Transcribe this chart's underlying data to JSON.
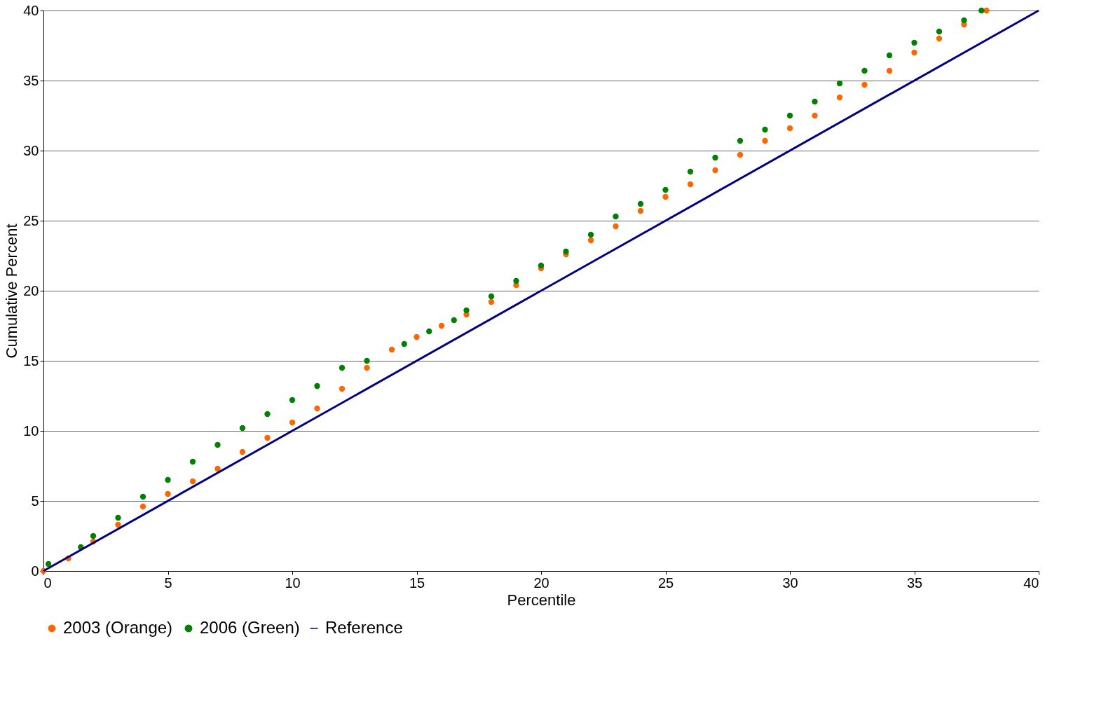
{
  "chart_data": {
    "type": "scatter",
    "xlabel": "Percentile",
    "ylabel": "Cumulative Percent",
    "xlim": [
      0,
      40
    ],
    "ylim": [
      0,
      40
    ],
    "xticks": [
      0,
      5,
      10,
      15,
      20,
      25,
      30,
      35,
      40
    ],
    "yticks": [
      0,
      5,
      10,
      15,
      20,
      25,
      30,
      35,
      40
    ],
    "grid": "y",
    "legend": "bottom",
    "series": [
      {
        "name": "2003 (Orange)",
        "color": "#ff6600",
        "marker": "circle",
        "x": [
          0,
          1,
          2,
          3,
          4,
          5,
          6,
          7,
          8,
          9,
          10,
          11,
          12,
          13,
          14,
          15,
          16,
          17,
          18,
          19,
          20,
          21,
          22,
          23,
          24,
          25,
          26,
          27,
          28,
          29,
          30,
          31,
          32,
          33,
          34,
          35,
          36,
          37,
          37.9
        ],
        "values": [
          0,
          0.9,
          2.1,
          3.3,
          4.6,
          5.5,
          6.4,
          7.3,
          8.5,
          9.5,
          10.6,
          11.6,
          13,
          14.5,
          15.8,
          16.7,
          17.5,
          18.3,
          19.2,
          20.4,
          21.6,
          22.6,
          23.6,
          24.6,
          25.7,
          26.7,
          27.6,
          28.6,
          29.7,
          30.7,
          31.6,
          32.5,
          33.8,
          34.7,
          35.7,
          37,
          38,
          39,
          40
        ]
      },
      {
        "name": "2006 (Green)",
        "color": "#008000",
        "marker": "circle",
        "x": [
          0.2,
          1.5,
          2,
          3,
          4,
          5,
          6,
          7,
          8,
          9,
          10,
          11,
          12,
          13,
          14.5,
          15.5,
          16.5,
          17,
          18,
          19,
          20,
          21,
          22,
          23,
          24,
          25,
          26,
          27,
          28,
          29,
          30,
          31,
          32,
          33,
          34,
          35,
          36,
          37,
          37.7
        ],
        "values": [
          0.5,
          1.7,
          2.5,
          3.8,
          5.3,
          6.5,
          7.8,
          9,
          10.2,
          11.2,
          12.2,
          13.2,
          14.5,
          15,
          16.2,
          17.1,
          17.9,
          18.6,
          19.6,
          20.7,
          21.8,
          22.8,
          24,
          25.3,
          26.2,
          27.2,
          28.5,
          29.5,
          30.7,
          31.5,
          32.5,
          33.5,
          34.8,
          35.7,
          36.8,
          37.7,
          38.5,
          39.3,
          40
        ]
      },
      {
        "name": "Reference",
        "type": "line",
        "marker": "none",
        "color": "#000080",
        "x": [
          0,
          40
        ],
        "values": [
          0,
          40
        ]
      }
    ]
  }
}
